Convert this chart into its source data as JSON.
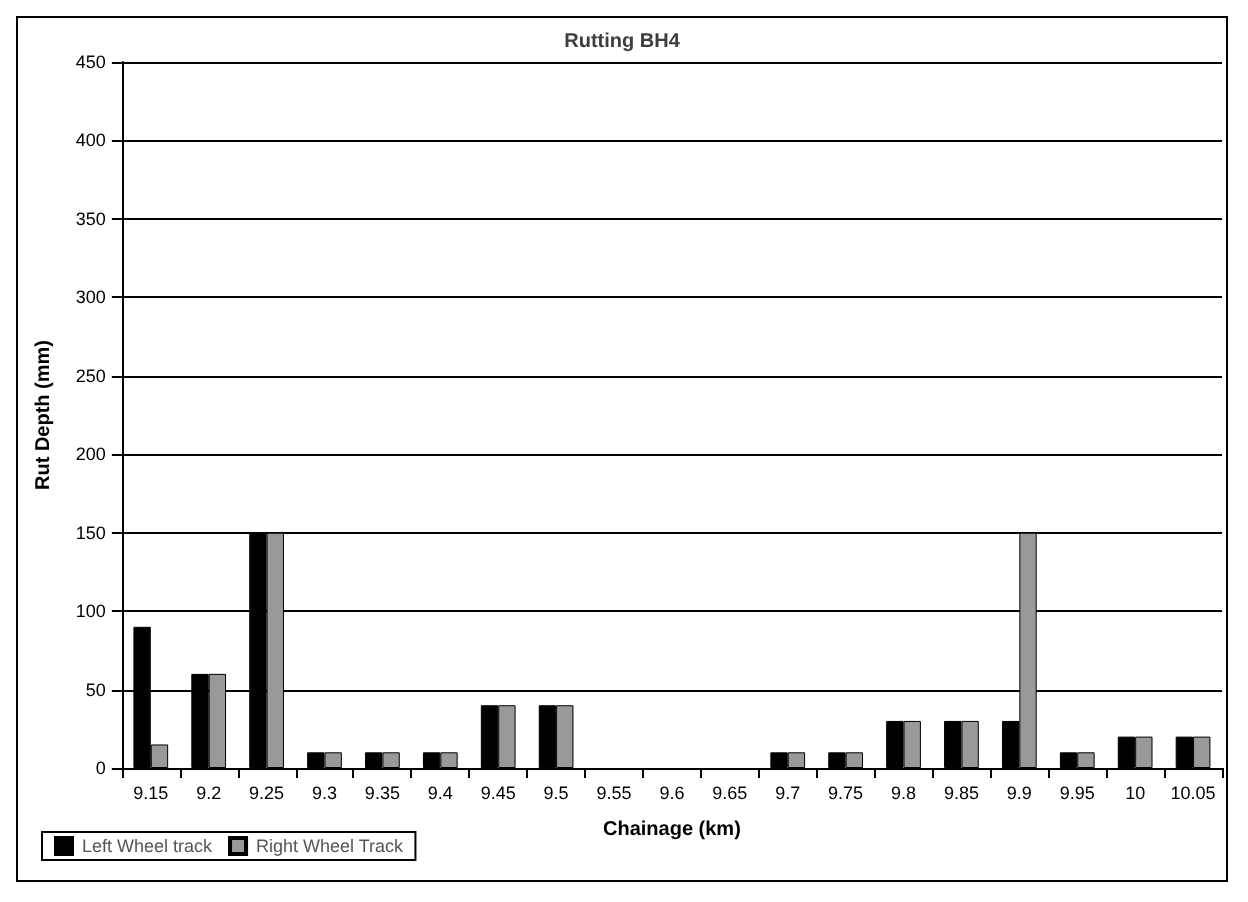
{
  "chart_data": {
    "type": "bar",
    "title": "Rutting BH4",
    "xlabel": "Chainage (km)",
    "ylabel": "Rut Depth (mm)",
    "categories": [
      "9.15",
      "9.2",
      "9.25",
      "9.3",
      "9.35",
      "9.4",
      "9.45",
      "9.5",
      "9.55",
      "9.6",
      "9.65",
      "9.7",
      "9.75",
      "9.8",
      "9.85",
      "9.9",
      "9.95",
      "10",
      "10.05"
    ],
    "series": [
      {
        "name": "Left Wheel track",
        "color": "#000000",
        "values": [
          90,
          60,
          150,
          10,
          10,
          10,
          40,
          40,
          0,
          0,
          0,
          10,
          10,
          30,
          30,
          30,
          10,
          20,
          20
        ]
      },
      {
        "name": "Right Wheel Track",
        "color": "#999999",
        "values": [
          15,
          60,
          150,
          10,
          10,
          10,
          40,
          40,
          0,
          0,
          0,
          10,
          10,
          30,
          30,
          150,
          10,
          20,
          20
        ]
      }
    ],
    "ylim": [
      0,
      450
    ],
    "yticks": [
      0,
      50,
      100,
      150,
      200,
      250,
      300,
      350,
      400,
      450
    ],
    "grid": "y",
    "legend": "bottom left"
  }
}
